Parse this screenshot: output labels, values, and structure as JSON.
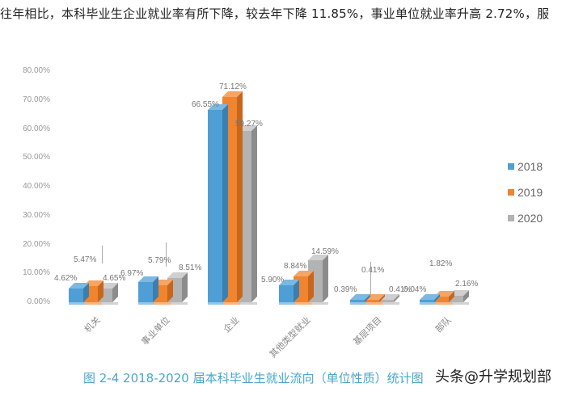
{
  "intro_text": "往年相比，本科毕业生企业就业率有所下降，较去年下降 11.85%，事业单位就业率升高 2.72%，服",
  "caption": "图 2-4   2018-2020 届本科毕业生就业流向（单位性质）统计图",
  "watermark": "头条@升学规划部",
  "legend": [
    {
      "label": "2018",
      "color": "#4f9fd6"
    },
    {
      "label": "2019",
      "color": "#f0842f"
    },
    {
      "label": "2020",
      "color": "#b3b3b3"
    }
  ],
  "y_ticks": [
    "80.00%",
    "70.00%",
    "60.00%",
    "50.00%",
    "40.00%",
    "30.00%",
    "20.00%",
    "10.00%",
    "0.00%"
  ],
  "chart_data": {
    "type": "bar",
    "title": "2018-2020 届本科毕业生就业流向（单位性质）统计图",
    "xlabel": "",
    "ylabel": "",
    "ylim": [
      0,
      80
    ],
    "y_ticks": [
      0,
      10,
      20,
      30,
      40,
      50,
      60,
      70,
      80
    ],
    "grid": false,
    "legend_position": "right",
    "style": "3d-clustered-column",
    "categories": [
      "机关",
      "事业单位",
      "企业",
      "其他类型就业",
      "基层项目",
      "部队"
    ],
    "series": [
      {
        "name": "2018",
        "color": "#4f9fd6",
        "values": [
          4.62,
          6.97,
          66.55,
          5.9,
          0.39,
          0.04
        ],
        "labels": [
          "4.62%",
          "6.97%",
          "66.55%",
          "5.90%",
          "0.39%",
          "0.04%"
        ]
      },
      {
        "name": "2019",
        "color": "#f0842f",
        "values": [
          5.47,
          5.79,
          71.12,
          8.84,
          0.41,
          1.82
        ],
        "labels": [
          "5.47%",
          "5.79%",
          "71.12%",
          "8.84%",
          "0.41%",
          "1.82%"
        ]
      },
      {
        "name": "2020",
        "color": "#b3b3b3",
        "values": [
          4.65,
          8.51,
          59.27,
          14.59,
          0.41,
          2.16
        ],
        "labels": [
          "4.65%",
          "8.51%",
          "59.27%",
          "14.59%",
          "0.41%",
          "2.16%"
        ]
      }
    ]
  }
}
